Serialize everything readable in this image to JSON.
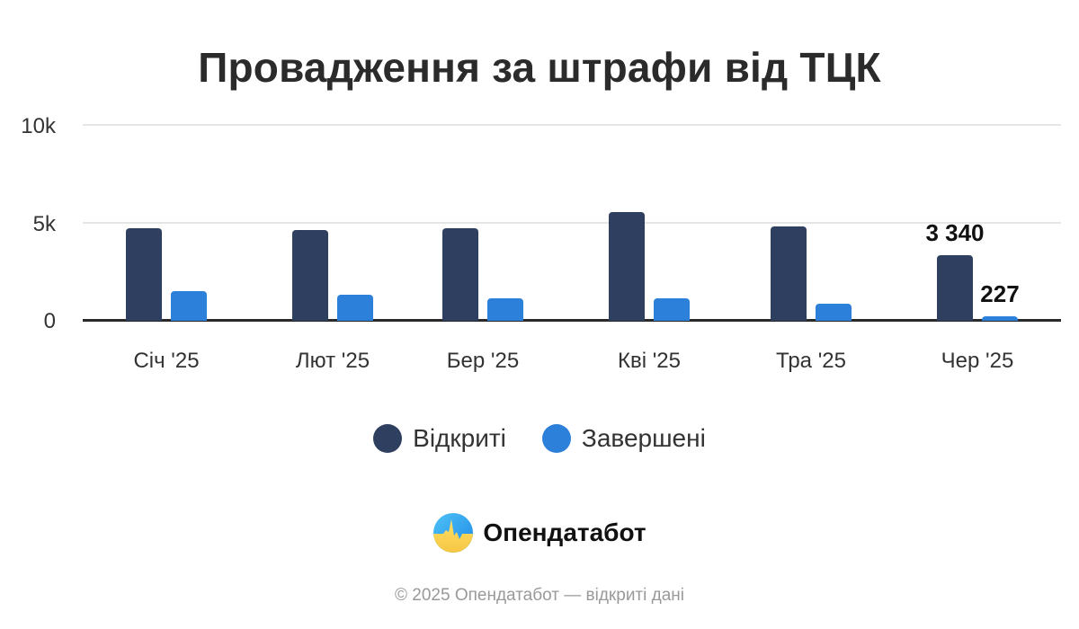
{
  "title": "Провадження за штрафи від ТЦК",
  "colors": {
    "open": "#2f3f5f",
    "closed": "#2d80d9"
  },
  "chart_data": {
    "type": "bar",
    "title": "Провадження за штрафи від ТЦК",
    "xlabel": "",
    "ylabel": "",
    "ylim": [
      0,
      10000
    ],
    "yticks": [
      "0",
      "5k",
      "10k"
    ],
    "grid": true,
    "legend_position": "bottom",
    "categories": [
      "Січ '25",
      "Лют '25",
      "Бер '25",
      "Кві '25",
      "Тра '25",
      "Чер '25"
    ],
    "series": [
      {
        "name": "Відкриті",
        "values": [
          4720,
          4630,
          4720,
          5550,
          4820,
          3340
        ]
      },
      {
        "name": "Завершені",
        "values": [
          1510,
          1330,
          1150,
          1150,
          870,
          227
        ]
      }
    ],
    "annotations": [
      {
        "series": "Відкриті",
        "category": "Чер '25",
        "text": "3 340"
      },
      {
        "series": "Завершені",
        "category": "Чер '25",
        "text": "227"
      }
    ]
  },
  "axis": {
    "y0": "0",
    "y5": "5k",
    "y10": "10k"
  },
  "labels": {
    "last_open": "3 340",
    "last_closed": "227"
  },
  "legend": {
    "open": "Відкриті",
    "closed": "Завершені"
  },
  "brand": {
    "name": "Опендатабот",
    "logo_icon": "opendatabot-logo-icon"
  },
  "footer": {
    "copyright": "© 2025 Опендатабот — відкриті дані"
  }
}
